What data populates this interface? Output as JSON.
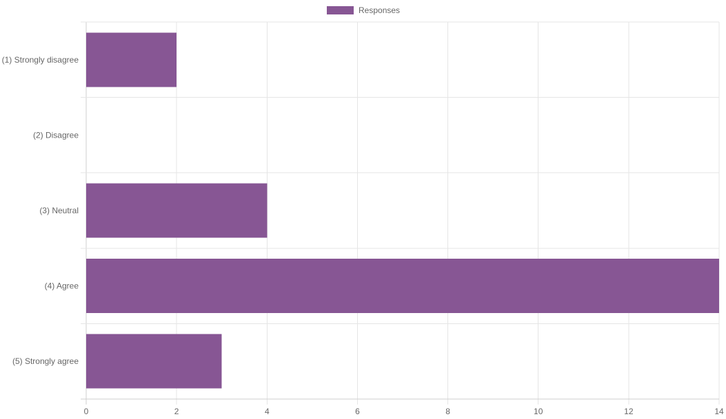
{
  "chart_data": {
    "type": "bar",
    "orientation": "horizontal",
    "categories": [
      "(1) Strongly disagree",
      "(2) Disagree",
      "(3) Neutral",
      "(4) Agree",
      "(5) Strongly agree"
    ],
    "series": [
      {
        "name": "Responses",
        "values": [
          2,
          0,
          4,
          14,
          3
        ],
        "color": "#875694"
      }
    ],
    "xlim": [
      0,
      14
    ],
    "xticks": [
      0,
      2,
      4,
      6,
      8,
      10,
      12,
      14
    ],
    "grid": true,
    "legend": {
      "position": "top"
    },
    "gridColor": "#e5e5e5",
    "axisColor": "#cfcfcf",
    "textColor": "#666666"
  }
}
